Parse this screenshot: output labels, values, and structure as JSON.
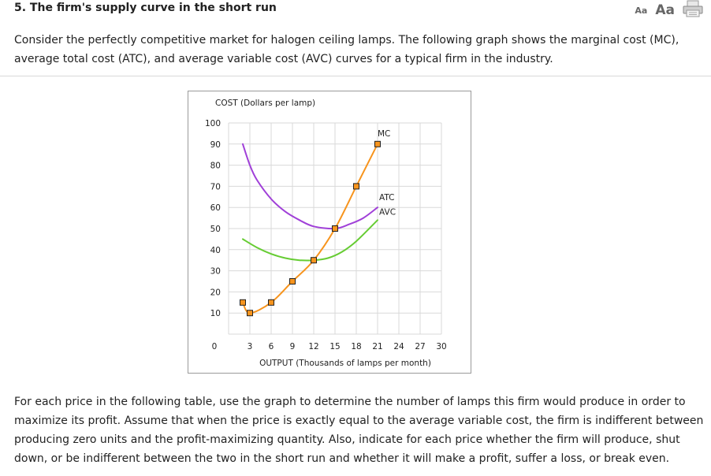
{
  "header": {
    "title": "5. The firm's supply curve in the short run",
    "font_small_label": "Aa",
    "font_large_label": "Aa",
    "print_icon": "printer-icon"
  },
  "intro": "Consider the perfectly competitive market for halogen ceiling lamps. The following graph shows the marginal cost (MC), average total cost (ATC), and average variable cost (AVC) curves for a typical firm in the industry.",
  "instructions": "For each price in the following table, use the graph to determine the number of lamps this firm would produce in order to maximize its profit. Assume that when the price is exactly equal to the average variable cost, the firm is indifferent between producing zero units and the profit-maximizing quantity. Also, indicate for each price whether the firm will produce, shut down, or be indifferent between the two in the short run and whether it will make a profit, suffer a loss, or break even.",
  "chart_data": {
    "type": "line",
    "ylabel": "COST (Dollars per lamp)",
    "xlabel": "OUTPUT (Thousands of lamps per month)",
    "xlim": [
      0,
      30
    ],
    "ylim": [
      0,
      100
    ],
    "x_ticks": [
      3,
      6,
      9,
      12,
      15,
      18,
      21,
      24,
      27,
      30
    ],
    "y_ticks": [
      10,
      20,
      30,
      40,
      50,
      60,
      70,
      80,
      90,
      100
    ],
    "origin_label": "0",
    "grid": true,
    "series": [
      {
        "name": "MC",
        "color": "#f7941d",
        "markers": true,
        "points": [
          [
            2,
            15
          ],
          [
            3,
            10
          ],
          [
            6,
            15
          ],
          [
            9,
            25
          ],
          [
            12,
            35
          ],
          [
            15,
            50
          ],
          [
            18,
            70
          ],
          [
            21,
            90
          ]
        ]
      },
      {
        "name": "ATC",
        "color": "#a040d8",
        "markers": false,
        "points": [
          [
            2,
            90
          ],
          [
            3,
            80
          ],
          [
            4,
            73
          ],
          [
            6,
            64
          ],
          [
            8,
            58
          ],
          [
            10,
            54
          ],
          [
            12,
            51
          ],
          [
            15,
            50
          ],
          [
            17,
            52
          ],
          [
            19,
            55
          ],
          [
            21,
            60
          ]
        ]
      },
      {
        "name": "AVC",
        "color": "#66cc33",
        "markers": false,
        "points": [
          [
            2,
            45
          ],
          [
            4,
            41
          ],
          [
            6,
            38
          ],
          [
            8,
            36
          ],
          [
            10,
            35
          ],
          [
            12,
            35
          ],
          [
            14,
            36
          ],
          [
            16,
            39
          ],
          [
            18,
            44
          ],
          [
            21,
            54
          ]
        ]
      }
    ]
  }
}
